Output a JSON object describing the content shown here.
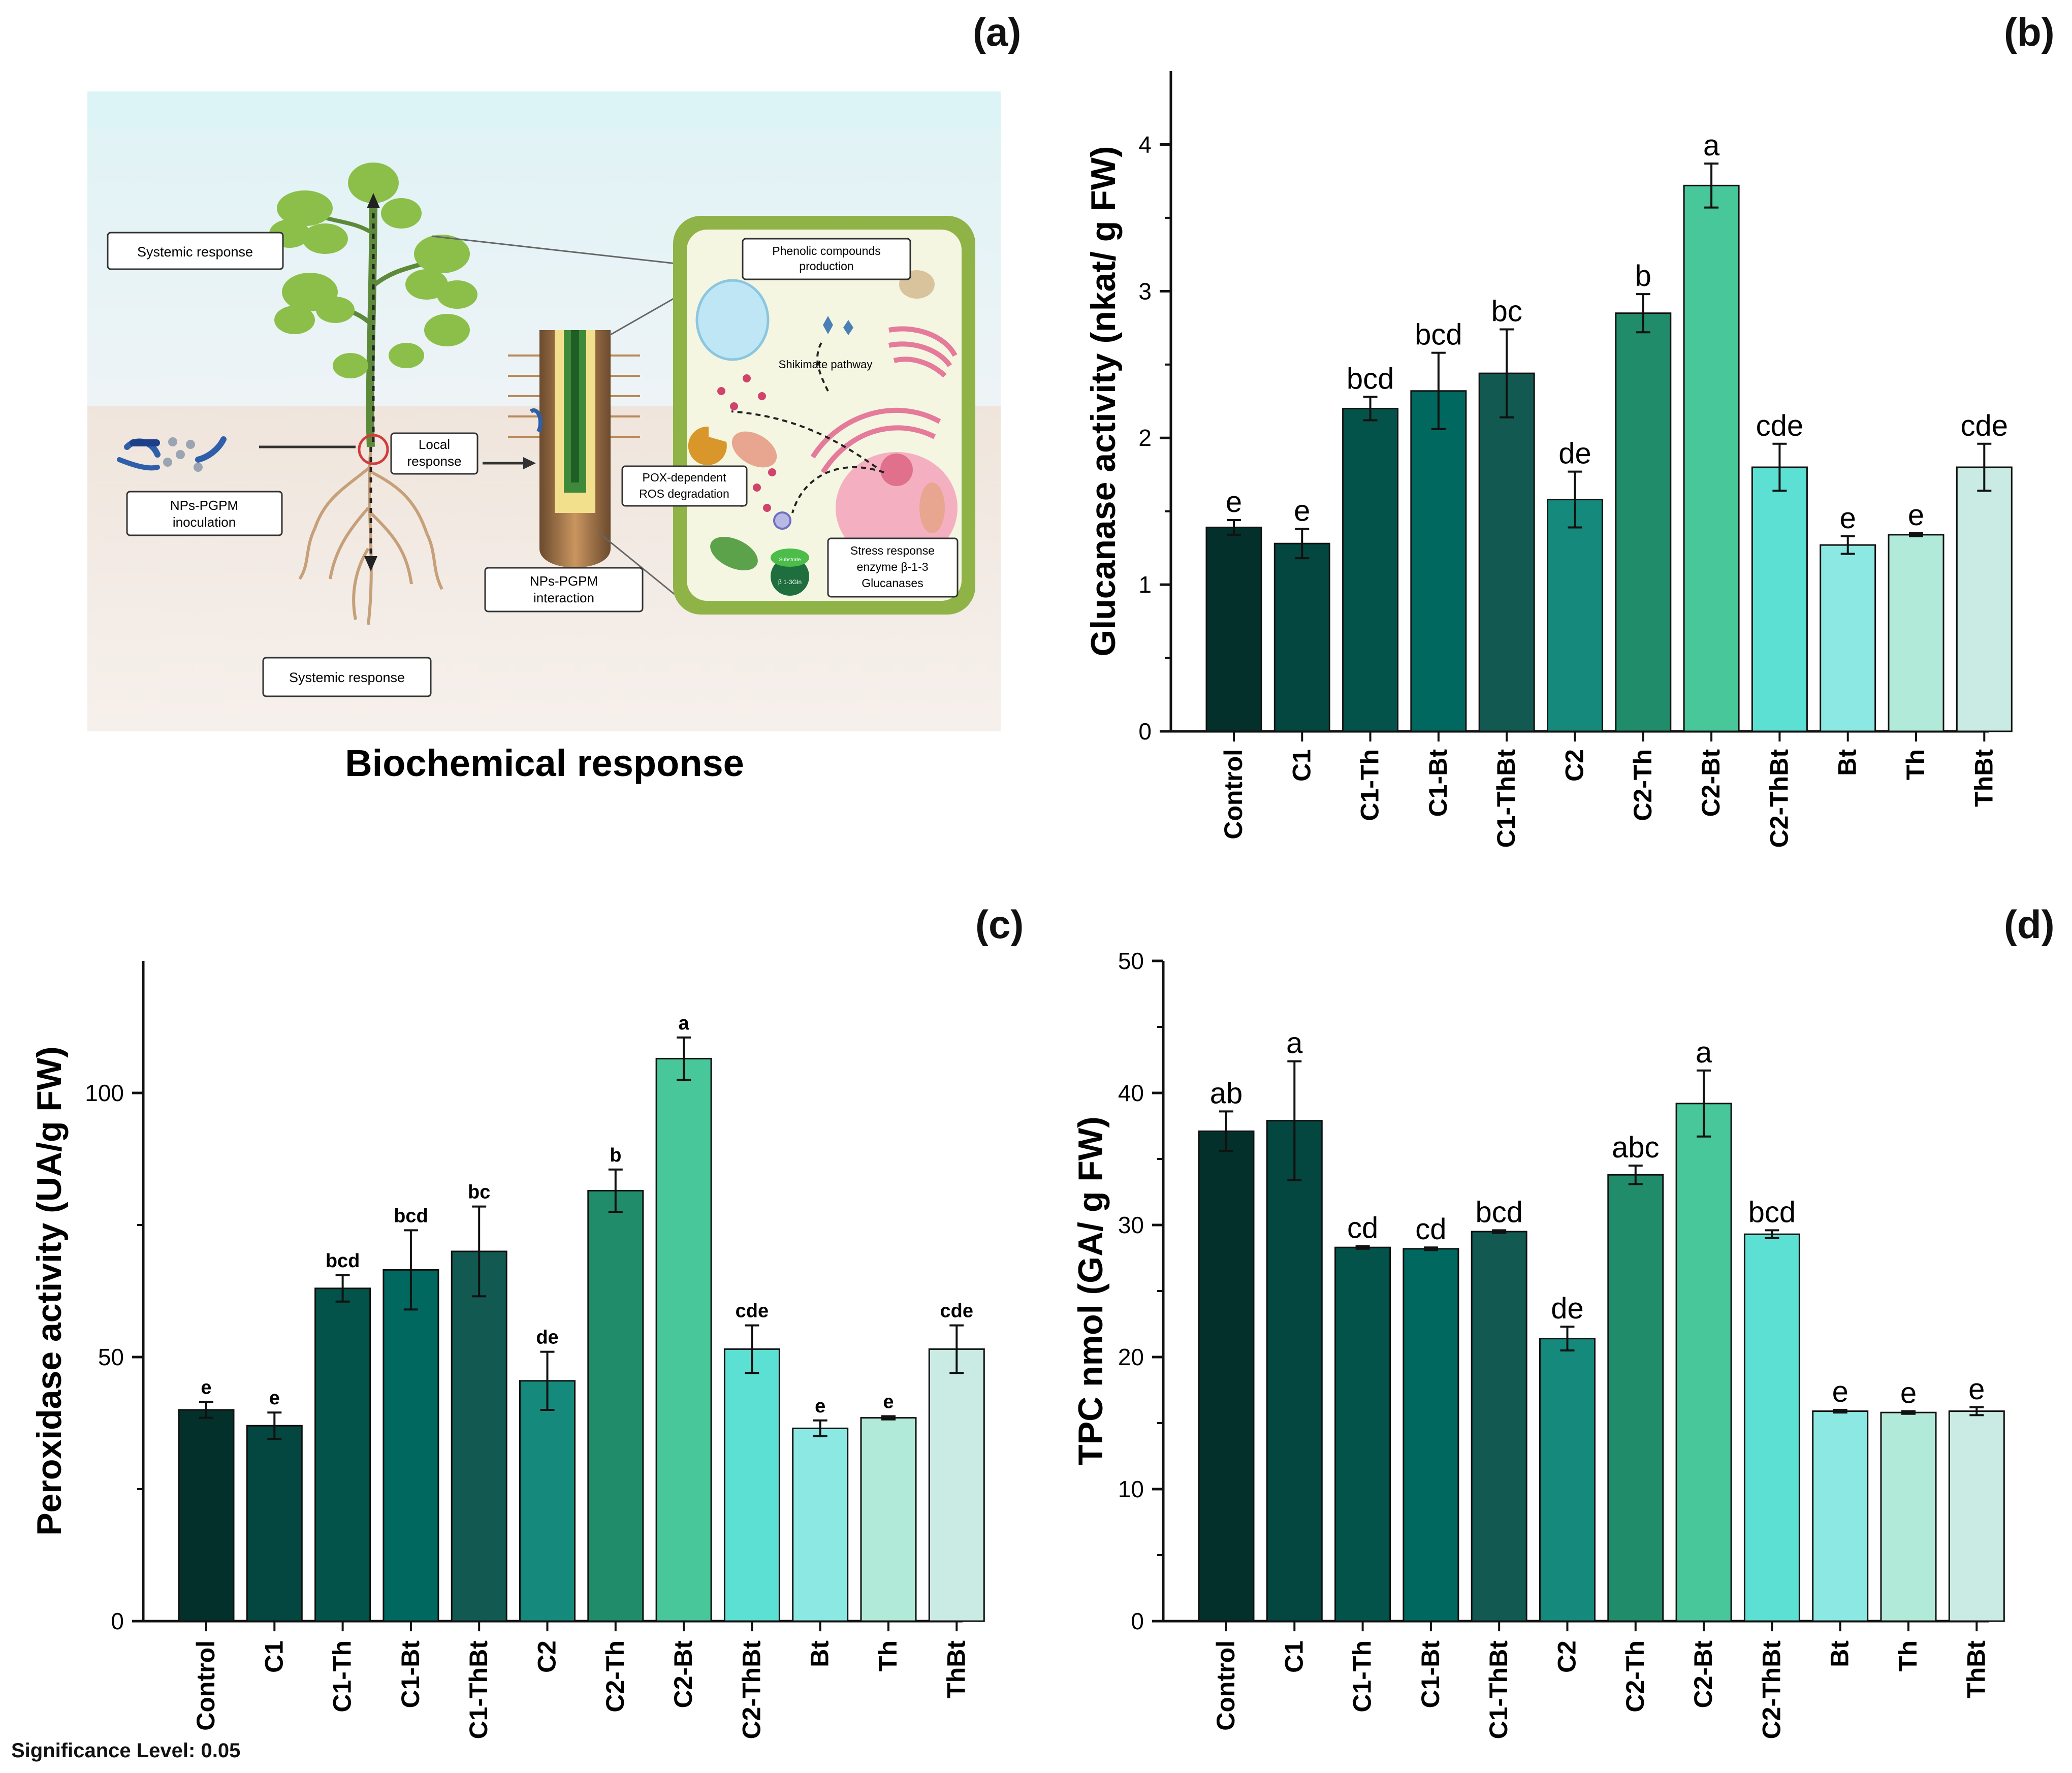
{
  "panel_labels": {
    "a": "(a)",
    "b": "(b)",
    "c": "(c)",
    "d": "(d)"
  },
  "diagram": {
    "title": "Biochemical response",
    "boxes": {
      "systemic_top": "Systemic response",
      "systemic_bottom": "Systemic response",
      "inoculation": [
        "NPs-PGPM",
        "inoculation"
      ],
      "local": [
        "Local",
        "response"
      ],
      "interaction": [
        "NPs-PGPM",
        "interaction"
      ],
      "phenolic": [
        "Phenolic compounds",
        "production"
      ],
      "pox": [
        "POX-dependent",
        "ROS degradation"
      ],
      "stress": [
        "Stress response",
        "enzyme β-1-3",
        "Glucanases"
      ]
    },
    "labels": {
      "shikimate": "Shikimate pathway",
      "substrate": "Substrate",
      "enzyme": "β 1-3Gln"
    },
    "colors": {
      "sky": "#dff1f3",
      "soil": "#f3ebe5",
      "cell_wall": "#8fb347",
      "cell_inner": "#f4f6e2"
    }
  },
  "significance": "Significance Level: 0.05",
  "bar_colors": [
    "#03302b",
    "#044640",
    "#03534a",
    "#00685f",
    "#125951",
    "#158a7c",
    "#218c6a",
    "#48c79b",
    "#5ce0d3",
    "#8ce8e3",
    "#b2ead9",
    "#c9ebe3"
  ],
  "chart_data": [
    {
      "id": "b",
      "type": "bar",
      "categories": [
        "Control",
        "C1",
        "C1-Th",
        "C1-Bt",
        "C1-ThBt",
        "C2",
        "C2-Th",
        "C2-Bt",
        "C2-ThBt",
        "Bt",
        "Th",
        "ThBt"
      ],
      "values": [
        1.39,
        1.28,
        2.2,
        2.32,
        2.44,
        1.58,
        2.85,
        3.72,
        1.8,
        1.27,
        1.34,
        1.8
      ],
      "errors": [
        0.05,
        0.1,
        0.08,
        0.26,
        0.3,
        0.19,
        0.13,
        0.15,
        0.16,
        0.06,
        0.01,
        0.16
      ],
      "letters": [
        "e",
        "e",
        "bcd",
        "bcd",
        "bc",
        "de",
        "b",
        "a",
        "cde",
        "e",
        "e",
        "cde"
      ],
      "ylabel": "Glucanase activity (nkat/ g FW)",
      "xlabel": "",
      "ylim": [
        0,
        4.5
      ],
      "yticks": [
        0,
        1,
        2,
        3,
        4
      ],
      "grid": false
    },
    {
      "id": "c",
      "type": "bar",
      "categories": [
        "Control",
        "C1",
        "C1-Th",
        "C1-Bt",
        "C1-ThBt",
        "C2",
        "C2-Th",
        "C2-Bt",
        "C2-ThBt",
        "Bt",
        "Th",
        "ThBt"
      ],
      "values": [
        40,
        37,
        63,
        66.5,
        70,
        45.5,
        81.5,
        106.5,
        51.5,
        36.5,
        38.5,
        51.5
      ],
      "errors": [
        1.5,
        2.5,
        2.5,
        7.5,
        8.5,
        5.5,
        4.0,
        4.0,
        4.5,
        1.5,
        0.3,
        4.5
      ],
      "letters": [
        "e",
        "e",
        "bcd",
        "bcd",
        "bc",
        "de",
        "b",
        "a",
        "cde",
        "e",
        "e",
        "cde"
      ],
      "ylabel": "Peroxidase activity (UA/g FW)",
      "xlabel": "",
      "ylim": [
        0,
        125
      ],
      "yticks": [
        0,
        50,
        100
      ],
      "grid": false
    },
    {
      "id": "d",
      "type": "bar",
      "categories": [
        "Control",
        "C1",
        "C1-Th",
        "C1-Bt",
        "C1-ThBt",
        "C2",
        "C2-Th",
        "C2-Bt",
        "C2-ThBt",
        "Bt",
        "Th",
        "ThBt"
      ],
      "values": [
        37.1,
        37.9,
        28.3,
        28.2,
        29.5,
        21.4,
        33.8,
        39.2,
        29.3,
        15.9,
        15.8,
        15.9
      ],
      "errors": [
        1.5,
        4.5,
        0.1,
        0.1,
        0.1,
        0.9,
        0.7,
        2.5,
        0.3,
        0.1,
        0.1,
        0.3
      ],
      "letters": [
        "ab",
        "a",
        "cd",
        "cd",
        "bcd",
        "de",
        "abc",
        "a",
        "bcd",
        "e",
        "e",
        "e"
      ],
      "ylabel": "TPC nmol (GA/ g FW)",
      "xlabel": "",
      "ylim": [
        0,
        50
      ],
      "yticks": [
        0,
        10,
        20,
        30,
        40,
        50
      ],
      "grid": false
    }
  ]
}
